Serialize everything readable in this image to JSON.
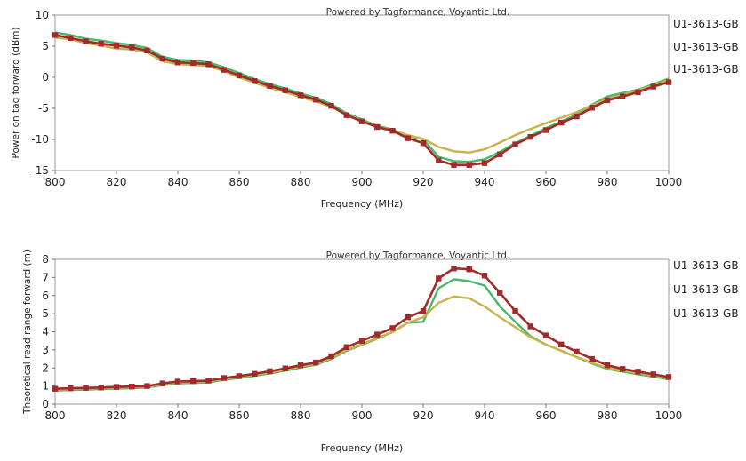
{
  "chart_data": [
    {
      "type": "line",
      "title": "Powered by Tagformance, Voyantic Ltd.",
      "xlabel": "Frequency (MHz)",
      "ylabel": "Power on tag forward (dBm)",
      "xlim": [
        800,
        1000
      ],
      "ylim": [
        -15,
        10
      ],
      "xticks": [
        800,
        820,
        840,
        860,
        880,
        900,
        920,
        940,
        960,
        980,
        1000
      ],
      "yticks": [
        -15,
        -10,
        -5,
        0,
        5,
        10
      ],
      "grid": false,
      "legend": "right",
      "x": [
        800,
        805,
        810,
        815,
        820,
        825,
        830,
        835,
        840,
        845,
        850,
        855,
        860,
        865,
        870,
        875,
        880,
        885,
        890,
        895,
        900,
        905,
        910,
        915,
        920,
        925,
        930,
        935,
        940,
        945,
        950,
        955,
        960,
        965,
        970,
        975,
        980,
        985,
        990,
        995,
        1000
      ],
      "series": [
        {
          "name": "U1-3613-GB",
          "color": "#a12a2a",
          "marker": "square",
          "values": [
            6.8,
            6.3,
            5.8,
            5.4,
            5.1,
            4.8,
            4.3,
            3.0,
            2.4,
            2.3,
            2.1,
            1.2,
            0.3,
            -0.6,
            -1.4,
            -2.1,
            -2.9,
            -3.6,
            -4.6,
            -6.1,
            -7.1,
            -8.0,
            -8.6,
            -9.8,
            -10.6,
            -13.4,
            -14.1,
            -14.1,
            -13.8,
            -12.4,
            -10.8,
            -9.6,
            -8.5,
            -7.3,
            -6.3,
            -4.9,
            -3.7,
            -3.1,
            -2.4,
            -1.5,
            -0.8
          ]
        },
        {
          "name": "U1-3613-GB",
          "color": "#48b86a",
          "marker": "none",
          "values": [
            7.2,
            6.8,
            6.2,
            5.9,
            5.5,
            5.2,
            4.7,
            3.3,
            2.8,
            2.7,
            2.4,
            1.6,
            0.7,
            -0.3,
            -1.1,
            -1.8,
            -2.6,
            -3.3,
            -4.3,
            -5.8,
            -6.8,
            -7.8,
            -8.4,
            -9.4,
            -10.0,
            -12.8,
            -13.5,
            -13.6,
            -13.2,
            -12.0,
            -10.6,
            -9.4,
            -8.2,
            -7.1,
            -6.0,
            -4.4,
            -3.1,
            -2.5,
            -2.0,
            -1.1,
            -0.2
          ]
        },
        {
          "name": "U1-3613-GB",
          "color": "#c8b24a",
          "marker": "none",
          "values": [
            6.4,
            6.1,
            5.5,
            5.1,
            4.6,
            4.5,
            4.0,
            2.6,
            2.1,
            2.0,
            1.8,
            1.0,
            0.0,
            -0.9,
            -1.7,
            -2.4,
            -3.2,
            -3.9,
            -4.8,
            -6.0,
            -7.0,
            -7.9,
            -8.5,
            -9.3,
            -9.9,
            -11.2,
            -11.9,
            -12.1,
            -11.6,
            -10.5,
            -9.3,
            -8.3,
            -7.4,
            -6.5,
            -5.6,
            -4.5,
            -3.5,
            -2.8,
            -2.1,
            -1.3,
            -0.4
          ]
        }
      ]
    },
    {
      "type": "line",
      "title": "Powered by Tagformance, Voyantic Ltd.",
      "xlabel": "Frequency (MHz)",
      "ylabel": "Theoretical read range forward (m)",
      "xlim": [
        800,
        1000
      ],
      "ylim": [
        0,
        8
      ],
      "xticks": [
        800,
        820,
        840,
        860,
        880,
        900,
        920,
        940,
        960,
        980,
        1000
      ],
      "yticks": [
        0,
        1,
        2,
        3,
        4,
        5,
        6,
        7,
        8
      ],
      "grid": false,
      "legend": "right",
      "x": [
        800,
        805,
        810,
        815,
        820,
        825,
        830,
        835,
        840,
        845,
        850,
        855,
        860,
        865,
        870,
        875,
        880,
        885,
        890,
        895,
        900,
        905,
        910,
        915,
        920,
        925,
        930,
        935,
        940,
        945,
        950,
        955,
        960,
        965,
        970,
        975,
        980,
        985,
        990,
        995,
        1000
      ],
      "series": [
        {
          "name": "U1-3613-GB",
          "color": "#a12a2a",
          "marker": "square",
          "values": [
            0.85,
            0.88,
            0.9,
            0.92,
            0.95,
            0.97,
            1.0,
            1.15,
            1.25,
            1.27,
            1.3,
            1.45,
            1.55,
            1.68,
            1.82,
            1.98,
            2.15,
            2.3,
            2.65,
            3.15,
            3.5,
            3.85,
            4.2,
            4.8,
            5.15,
            6.95,
            7.5,
            7.45,
            7.1,
            6.15,
            5.15,
            4.3,
            3.8,
            3.3,
            2.9,
            2.5,
            2.15,
            1.95,
            1.8,
            1.65,
            1.5
          ]
        },
        {
          "name": "U1-3613-GB",
          "color": "#48b86a",
          "marker": "none",
          "values": [
            0.75,
            0.78,
            0.8,
            0.83,
            0.86,
            0.88,
            0.92,
            1.05,
            1.15,
            1.17,
            1.2,
            1.35,
            1.45,
            1.57,
            1.7,
            1.85,
            2.02,
            2.18,
            2.5,
            2.95,
            3.28,
            3.62,
            3.98,
            4.5,
            4.55,
            6.4,
            6.9,
            6.8,
            6.55,
            5.4,
            4.55,
            3.75,
            3.3,
            2.95,
            2.6,
            2.25,
            1.95,
            1.8,
            1.65,
            1.52,
            1.38
          ]
        },
        {
          "name": "U1-3613-GB",
          "color": "#c8b24a",
          "marker": "none",
          "values": [
            0.8,
            0.83,
            0.85,
            0.88,
            0.9,
            0.93,
            0.96,
            1.1,
            1.2,
            1.22,
            1.25,
            1.4,
            1.5,
            1.62,
            1.75,
            1.9,
            2.08,
            2.22,
            2.55,
            3.0,
            3.32,
            3.65,
            4.0,
            4.5,
            4.8,
            5.6,
            5.95,
            5.85,
            5.4,
            4.8,
            4.25,
            3.7,
            3.3,
            2.95,
            2.6,
            2.28,
            2.0,
            1.85,
            1.72,
            1.58,
            1.45
          ]
        }
      ]
    }
  ]
}
